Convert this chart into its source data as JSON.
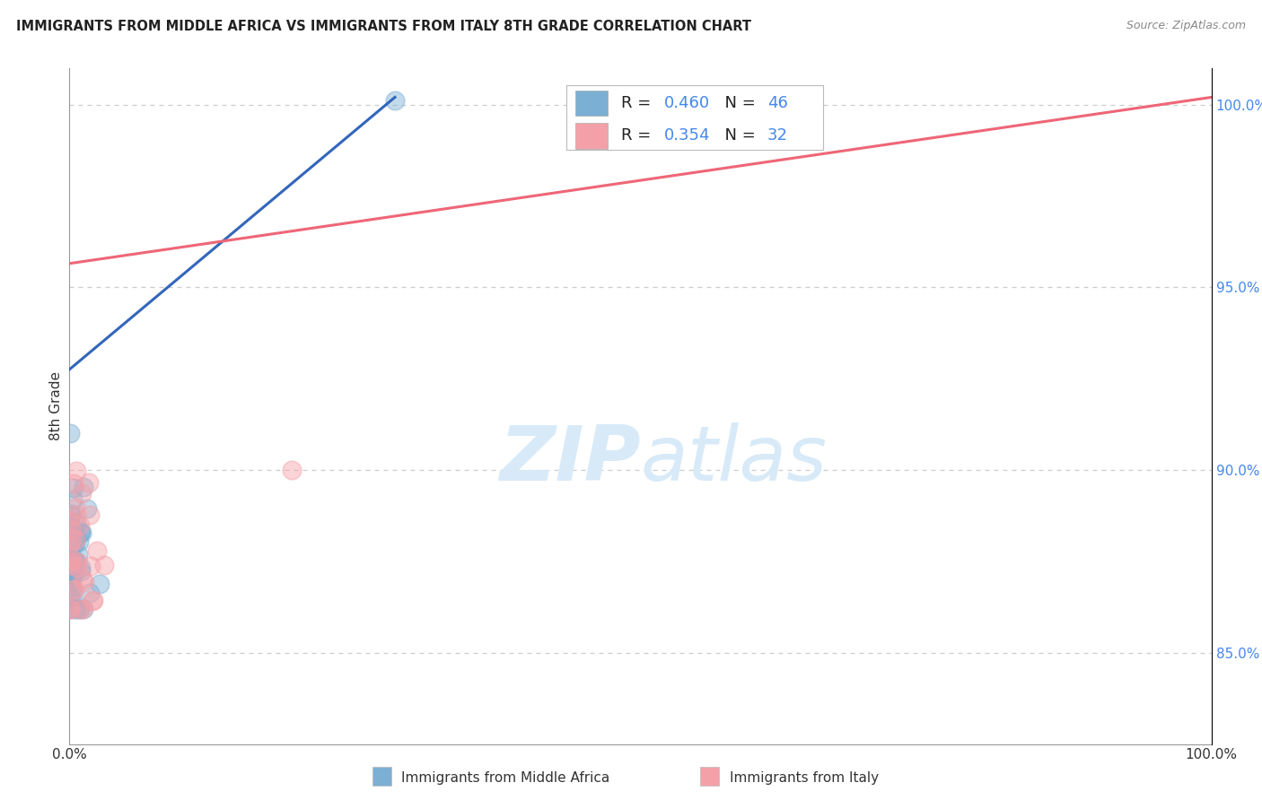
{
  "title": "IMMIGRANTS FROM MIDDLE AFRICA VS IMMIGRANTS FROM ITALY 8TH GRADE CORRELATION CHART",
  "source": "Source: ZipAtlas.com",
  "ylabel": "8th Grade",
  "legend_blue_label": "Immigrants from Middle Africa",
  "legend_pink_label": "Immigrants from Italy",
  "R_blue": 0.46,
  "N_blue": 46,
  "R_pink": 0.354,
  "N_pink": 32,
  "blue_color": "#7BAFD4",
  "pink_color": "#F4A0A8",
  "blue_line_color": "#3366BB",
  "pink_line_color": "#EE6677",
  "xlim": [
    0.0,
    1.0
  ],
  "ylim": [
    0.825,
    1.01
  ],
  "yticks": [
    0.85,
    0.9,
    0.95,
    1.0
  ],
  "ytick_labels": [
    "85.0%",
    "90.0%",
    "95.0%",
    "100.0%"
  ],
  "background_color": "#FFFFFF",
  "grid_color": "#CCCCCC",
  "watermark_color": "#D8EAF8",
  "blue_line_x0": 0.0,
  "blue_line_y0": 0.9275,
  "blue_line_x1": 0.285,
  "blue_line_y1": 1.002,
  "pink_line_x0": 0.0,
  "pink_line_y0": 0.9565,
  "pink_line_x1": 1.0,
  "pink_line_y1": 1.002
}
